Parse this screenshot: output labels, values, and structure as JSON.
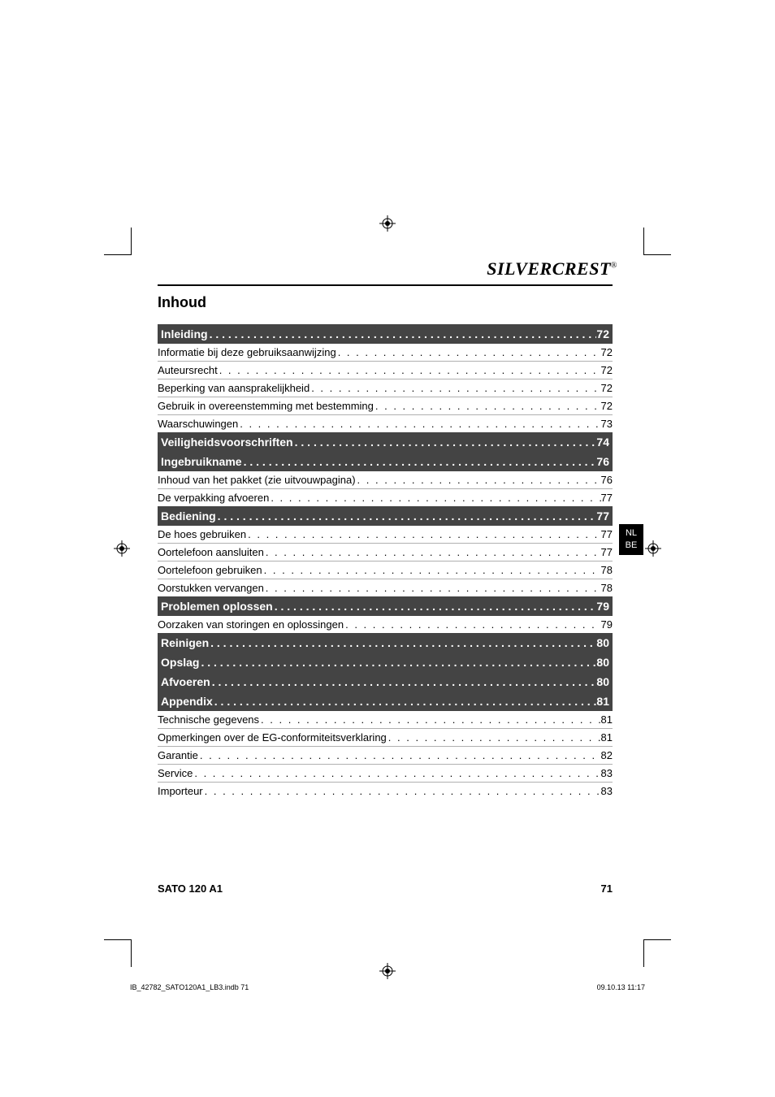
{
  "brand": "SILVERCREST",
  "brand_reg": "®",
  "side_tab": {
    "line1": "NL",
    "line2": "BE"
  },
  "toc_title": "Inhoud",
  "toc": [
    {
      "type": "section",
      "label": "Inleiding",
      "page": "72"
    },
    {
      "type": "item",
      "label": "Informatie bij deze gebruiksaanwijzing",
      "page": "72"
    },
    {
      "type": "item",
      "label": "Auteursrecht",
      "page": "72"
    },
    {
      "type": "item",
      "label": "Beperking van aansprakelijkheid",
      "page": "72"
    },
    {
      "type": "item",
      "label": "Gebruik in overeenstemming met bestemming",
      "page": "72"
    },
    {
      "type": "item",
      "label": "Waarschuwingen",
      "page": "73"
    },
    {
      "type": "section",
      "label": "Veiligheidsvoorschriften",
      "page": "74"
    },
    {
      "type": "section",
      "label": "Ingebruikname",
      "page": "76"
    },
    {
      "type": "item",
      "label": "Inhoud van het pakket (zie uitvouwpagina)",
      "page": "76"
    },
    {
      "type": "item",
      "label": "De verpakking afvoeren",
      "page": "77"
    },
    {
      "type": "section",
      "label": "Bediening",
      "page": "77"
    },
    {
      "type": "item",
      "label": "De hoes gebruiken",
      "page": "77"
    },
    {
      "type": "item",
      "label": "Oortelefoon aansluiten",
      "page": "77"
    },
    {
      "type": "item",
      "label": "Oortelefoon gebruiken",
      "page": "78"
    },
    {
      "type": "item",
      "label": "Oorstukken vervangen",
      "page": "78"
    },
    {
      "type": "section",
      "label": "Problemen oplossen",
      "page": "79"
    },
    {
      "type": "item",
      "label": "Oorzaken van storingen en oplossingen",
      "page": "79"
    },
    {
      "type": "section",
      "label": "Reinigen",
      "page": "80"
    },
    {
      "type": "section",
      "label": "Opslag",
      "page": "80"
    },
    {
      "type": "section",
      "label": "Afvoeren",
      "page": "80"
    },
    {
      "type": "section",
      "label": "Appendix",
      "page": "81"
    },
    {
      "type": "item",
      "label": "Technische gegevens",
      "page": "81"
    },
    {
      "type": "item",
      "label": "Opmerkingen over de EG-conformiteitsverklaring",
      "page": "81"
    },
    {
      "type": "item",
      "label": "Garantie",
      "page": "82"
    },
    {
      "type": "item",
      "label": "Service",
      "page": "83"
    },
    {
      "type": "item",
      "label": "Importeur",
      "page": "83"
    }
  ],
  "footer": {
    "model": "SATO 120 A1",
    "page": "71"
  },
  "printinfo": {
    "left": "IB_42782_SATO120A1_LB3.indb   71",
    "right": "09.10.13   11:17"
  },
  "colors": {
    "section_bg": "#444444",
    "section_fg": "#ffffff",
    "rule": "#b0b0b0",
    "text": "#000000",
    "tab_bg": "#000000"
  }
}
